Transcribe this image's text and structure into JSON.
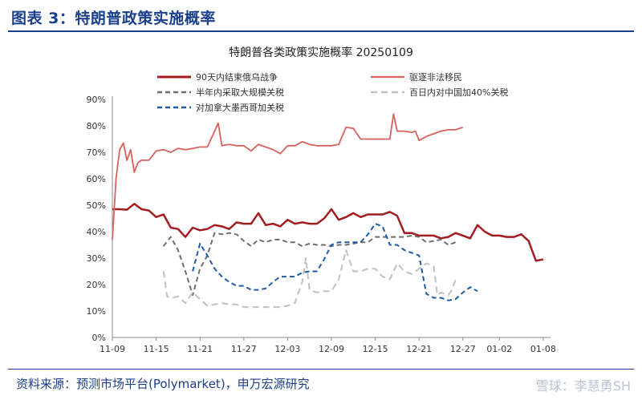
{
  "header": {
    "title": "图表 3：特朗普政策实施概率"
  },
  "source": "资料来源：预测市场平台(Polymarket)，申万宏源研究",
  "watermark": "雪球：李慧勇SH",
  "chart_data": {
    "type": "line",
    "title": "特朗普各类政策实施概率 20250109",
    "xlabel": "",
    "ylabel": "",
    "ylim": [
      0,
      90
    ],
    "yticks": [
      "0%",
      "10%",
      "20%",
      "30%",
      "40%",
      "50%",
      "60%",
      "70%",
      "80%",
      "90%"
    ],
    "x_start": "2024-11-09",
    "xticks": [
      {
        "day": 0,
        "label": "11-09"
      },
      {
        "day": 6,
        "label": "11-15"
      },
      {
        "day": 12,
        "label": "11-21"
      },
      {
        "day": 18,
        "label": "11-27"
      },
      {
        "day": 24,
        "label": "12-03"
      },
      {
        "day": 30,
        "label": "12-09"
      },
      {
        "day": 36,
        "label": "12-15"
      },
      {
        "day": 42,
        "label": "12-21"
      },
      {
        "day": 48,
        "label": "12-27"
      },
      {
        "day": 53,
        "label": "01-02"
      },
      {
        "day": 59,
        "label": "01-08"
      }
    ],
    "x_max_day": 60,
    "legend_position": "top",
    "series": [
      {
        "name": "90天内结束俄乌战争",
        "color": "#a31c20",
        "dash": "solid",
        "width": 2.5,
        "points": [
          [
            0,
            48.5
          ],
          [
            1,
            48.5
          ],
          [
            2,
            48.3
          ],
          [
            3,
            50.5
          ],
          [
            4,
            48.5
          ],
          [
            5,
            48.0
          ],
          [
            6,
            45.5
          ],
          [
            7,
            46.5
          ],
          [
            8,
            41.5
          ],
          [
            9,
            41.0
          ],
          [
            10,
            38.0
          ],
          [
            11,
            41.5
          ],
          [
            12,
            40.5
          ],
          [
            13,
            41.0
          ],
          [
            14,
            42.5
          ],
          [
            15,
            42.0
          ],
          [
            16,
            41.0
          ],
          [
            17,
            43.5
          ],
          [
            18,
            43.0
          ],
          [
            19,
            43.0
          ],
          [
            20,
            47.0
          ],
          [
            21,
            42.5
          ],
          [
            22,
            43.0
          ],
          [
            23,
            42.0
          ],
          [
            24,
            44.5
          ],
          [
            25,
            43.0
          ],
          [
            26,
            43.5
          ],
          [
            27,
            43.0
          ],
          [
            28,
            43.0
          ],
          [
            29,
            45.0
          ],
          [
            30,
            48.5
          ],
          [
            31,
            44.5
          ],
          [
            32,
            45.5
          ],
          [
            33,
            47.0
          ],
          [
            34,
            45.5
          ],
          [
            35,
            46.5
          ],
          [
            36,
            46.5
          ],
          [
            37,
            46.5
          ],
          [
            38,
            47.5
          ],
          [
            39,
            46.0
          ],
          [
            40,
            39.5
          ],
          [
            41,
            39.5
          ],
          [
            42,
            38.5
          ],
          [
            43,
            38.5
          ],
          [
            44,
            38.5
          ],
          [
            45,
            37.5
          ],
          [
            46,
            38.0
          ],
          [
            47,
            39.5
          ],
          [
            48,
            38.5
          ],
          [
            49,
            37.5
          ],
          [
            50,
            42.5
          ],
          [
            51,
            40.0
          ],
          [
            52,
            38.5
          ],
          [
            53,
            38.5
          ],
          [
            54,
            38.0
          ],
          [
            55,
            38.0
          ],
          [
            56,
            39.0
          ],
          [
            57,
            36.5
          ],
          [
            58,
            29.0
          ],
          [
            59,
            29.5
          ]
        ]
      },
      {
        "name": "驱逐非法移民",
        "color": "#d9615d",
        "dash": "solid",
        "width": 1.8,
        "points": [
          [
            0,
            37
          ],
          [
            0.5,
            60
          ],
          [
            1,
            71
          ],
          [
            1.5,
            73.5
          ],
          [
            2,
            67
          ],
          [
            2.5,
            71
          ],
          [
            3,
            62.5
          ],
          [
            3.5,
            66
          ],
          [
            4,
            67
          ],
          [
            5,
            67
          ],
          [
            6,
            70.5
          ],
          [
            7,
            71
          ],
          [
            8,
            70
          ],
          [
            9,
            71.5
          ],
          [
            10,
            71
          ],
          [
            11,
            71.5
          ],
          [
            12,
            72
          ],
          [
            13,
            72
          ],
          [
            14,
            78
          ],
          [
            14.5,
            81
          ],
          [
            15,
            72.5
          ],
          [
            16,
            73
          ],
          [
            17,
            72.5
          ],
          [
            18,
            72.5
          ],
          [
            19,
            70.5
          ],
          [
            20,
            73
          ],
          [
            21,
            72
          ],
          [
            22,
            71
          ],
          [
            23,
            69.5
          ],
          [
            24,
            72.5
          ],
          [
            25,
            72.5
          ],
          [
            26,
            74
          ],
          [
            27,
            73
          ],
          [
            28,
            72.5
          ],
          [
            29,
            72.5
          ],
          [
            30,
            72.5
          ],
          [
            31,
            73
          ],
          [
            32,
            79.5
          ],
          [
            33,
            79
          ],
          [
            34,
            75
          ],
          [
            35,
            75
          ],
          [
            36,
            75
          ],
          [
            37,
            75
          ],
          [
            38,
            75
          ],
          [
            38.5,
            84.5
          ],
          [
            39,
            78
          ],
          [
            40,
            78
          ],
          [
            41,
            77.5
          ],
          [
            41.5,
            78
          ],
          [
            42,
            74.5
          ],
          [
            43,
            76
          ],
          [
            44,
            77
          ],
          [
            45,
            78
          ],
          [
            46,
            78.5
          ],
          [
            47,
            78.5
          ],
          [
            48,
            79.5
          ]
        ]
      },
      {
        "name": "半年内采取大规模关税",
        "color": "#6e6e6e",
        "dash": "6,4",
        "width": 2,
        "points": [
          [
            7,
            34.5
          ],
          [
            8,
            38
          ],
          [
            9,
            33
          ],
          [
            10,
            25
          ],
          [
            11,
            16
          ],
          [
            12,
            26
          ],
          [
            13,
            31
          ],
          [
            14,
            39.5
          ],
          [
            15,
            39
          ],
          [
            16,
            39.5
          ],
          [
            17,
            39
          ],
          [
            18,
            36.5
          ],
          [
            19,
            34.5
          ],
          [
            20,
            37
          ],
          [
            21,
            36
          ],
          [
            22,
            37
          ],
          [
            23,
            37
          ],
          [
            24,
            36
          ],
          [
            25,
            36
          ],
          [
            26,
            34.5
          ],
          [
            27,
            35.5
          ],
          [
            28,
            35
          ],
          [
            29,
            35
          ],
          [
            30,
            34.5
          ],
          [
            31,
            35
          ],
          [
            32,
            35
          ],
          [
            33,
            35.5
          ],
          [
            34,
            36
          ],
          [
            35,
            36
          ],
          [
            36,
            38
          ],
          [
            37,
            38
          ],
          [
            38,
            38
          ],
          [
            39,
            38
          ],
          [
            40,
            38
          ],
          [
            41,
            38.5
          ],
          [
            42,
            38
          ],
          [
            43,
            36
          ],
          [
            44,
            36.5
          ],
          [
            45,
            37
          ],
          [
            46,
            35
          ],
          [
            47,
            36
          ]
        ]
      },
      {
        "name": "百日内对中国加40%关税",
        "color": "#c0c0c0",
        "dash": "8,5",
        "width": 2,
        "points": [
          [
            7,
            25
          ],
          [
            7.5,
            15.5
          ],
          [
            8,
            15
          ],
          [
            9,
            15.5
          ],
          [
            10,
            13
          ],
          [
            11,
            17
          ],
          [
            12,
            14.5
          ],
          [
            13,
            12
          ],
          [
            14,
            12.5
          ],
          [
            15,
            13
          ],
          [
            16,
            12.5
          ],
          [
            17,
            12.5
          ],
          [
            18,
            11.5
          ],
          [
            19,
            11.5
          ],
          [
            20,
            11.5
          ],
          [
            21,
            11.5
          ],
          [
            22,
            11.5
          ],
          [
            23,
            11.5
          ],
          [
            24,
            12
          ],
          [
            25,
            13
          ],
          [
            26,
            21
          ],
          [
            26.5,
            30
          ],
          [
            27,
            18
          ],
          [
            28,
            17
          ],
          [
            29,
            17.5
          ],
          [
            30,
            17.5
          ],
          [
            31,
            22
          ],
          [
            32,
            33
          ],
          [
            33,
            25
          ],
          [
            34,
            25
          ],
          [
            35,
            26
          ],
          [
            36,
            26
          ],
          [
            37,
            23
          ],
          [
            38,
            22
          ],
          [
            39,
            28
          ],
          [
            40,
            25
          ],
          [
            41,
            24
          ],
          [
            42,
            26
          ],
          [
            43,
            28
          ],
          [
            44,
            27
          ],
          [
            44.5,
            16
          ],
          [
            45,
            17
          ],
          [
            46,
            16
          ],
          [
            46.5,
            18
          ],
          [
            47,
            22
          ]
        ]
      },
      {
        "name": "对加拿大墨西哥加关税",
        "color": "#1f5aa6",
        "dash": "6,4",
        "width": 2,
        "points": [
          [
            11,
            25
          ],
          [
            12,
            35.5
          ],
          [
            13,
            31
          ],
          [
            14,
            26
          ],
          [
            15,
            23
          ],
          [
            16,
            21
          ],
          [
            17,
            19.5
          ],
          [
            18,
            19.5
          ],
          [
            19,
            18
          ],
          [
            20,
            18
          ],
          [
            21,
            18.5
          ],
          [
            22,
            21
          ],
          [
            23,
            23
          ],
          [
            24,
            23
          ],
          [
            25,
            23
          ],
          [
            26,
            24.5
          ],
          [
            27,
            25
          ],
          [
            28,
            25
          ],
          [
            29,
            29.5
          ],
          [
            30,
            35
          ],
          [
            31,
            36
          ],
          [
            32,
            36
          ],
          [
            33,
            36
          ],
          [
            34,
            36
          ],
          [
            35,
            39
          ],
          [
            36,
            43
          ],
          [
            37,
            42
          ],
          [
            38,
            35
          ],
          [
            39,
            35
          ],
          [
            40,
            33
          ],
          [
            41,
            32
          ],
          [
            42,
            31
          ],
          [
            43,
            16.5
          ],
          [
            44,
            15
          ],
          [
            45,
            15
          ],
          [
            46,
            14
          ],
          [
            47,
            14.5
          ],
          [
            48,
            17
          ],
          [
            49,
            19
          ],
          [
            50,
            17.5
          ]
        ]
      }
    ]
  }
}
